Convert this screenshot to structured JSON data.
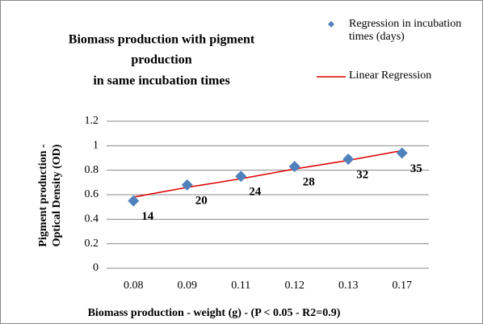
{
  "chart_data": {
    "type": "scatter",
    "title": [
      "Biomass production with pigment",
      "production",
      "in same incubation times"
    ],
    "y_label": [
      "Pigment production -",
      "Optical Density (OD)"
    ],
    "x_label": "Biomass production - weight (g) - (P < 0.05 - R2=0.9)",
    "categories": [
      "0.08",
      "0.09",
      "0.11",
      "0.12",
      "0.13",
      "0.17"
    ],
    "series": [
      {
        "name": "Regression in incubation times (days)",
        "color": "#4f81bd",
        "kind": "marker",
        "values": [
          0.55,
          0.68,
          0.75,
          0.83,
          0.89,
          0.94
        ],
        "point_labels": [
          "14",
          "20",
          "24",
          "28",
          "32",
          "35"
        ]
      },
      {
        "name": "Linear Regression",
        "color": "#e00000",
        "kind": "line",
        "values": [
          0.58,
          0.66,
          0.73,
          0.81,
          0.88,
          0.96
        ]
      }
    ],
    "ylim": [
      0,
      1.2
    ],
    "yticks": [
      0,
      0.2,
      0.4,
      0.6,
      0.8,
      1,
      1.2
    ],
    "grid": true,
    "legend": "top-right"
  }
}
